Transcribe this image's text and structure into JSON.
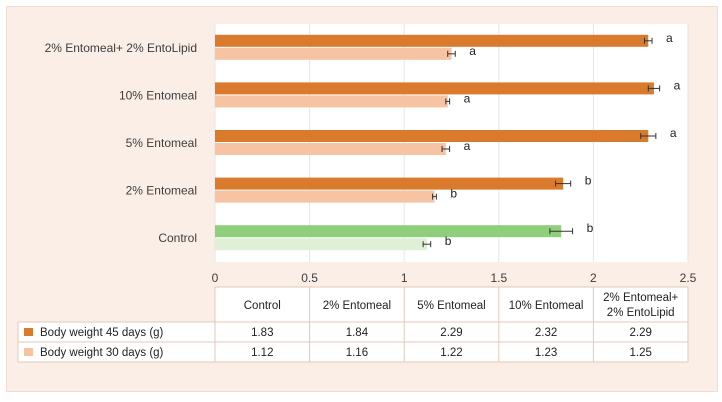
{
  "chart_data": {
    "type": "bar",
    "orientation": "horizontal",
    "categories": [
      "Control",
      "2% Entomeal",
      "5% Entomeal",
      "10% Entomeal",
      "2% Entomeal+ 2% EntoLipid"
    ],
    "table_headers": [
      "Control",
      "2% Entomeal",
      "5% Entomeal",
      "10% Entomeal",
      "2% Entomeal+",
      "2% EntoLipid"
    ],
    "series": [
      {
        "name": "Body weight 45 days (g)",
        "values": [
          1.83,
          1.84,
          2.29,
          2.32,
          2.29
        ],
        "errors": [
          0.06,
          0.04,
          0.04,
          0.03,
          0.02
        ],
        "display": [
          "1.83",
          "1.84",
          "2.29",
          "2.32",
          "2.29"
        ],
        "significance": [
          "b",
          "b",
          "a",
          "a",
          "a"
        ],
        "color": "#d97a2c",
        "control_color": "#8fcf7b"
      },
      {
        "name": "Body weight 30 days (g)",
        "values": [
          1.12,
          1.16,
          1.22,
          1.23,
          1.25
        ],
        "errors": [
          0.02,
          0.01,
          0.02,
          0.01,
          0.02
        ],
        "display": [
          "1.12",
          "1.16",
          "1.22",
          "1.23",
          "1.25"
        ],
        "significance": [
          "b",
          "b",
          "a",
          "a",
          "a"
        ],
        "color": "#f6c3a3",
        "control_color": "#dff0d6"
      }
    ],
    "xlim": [
      0,
      2.5
    ],
    "xticks": [
      0,
      0.5,
      1,
      1.5,
      2,
      2.5
    ],
    "xtick_labels": [
      "0",
      "0.5",
      "1",
      "1.5",
      "2",
      "2.5"
    ],
    "grid": true
  }
}
